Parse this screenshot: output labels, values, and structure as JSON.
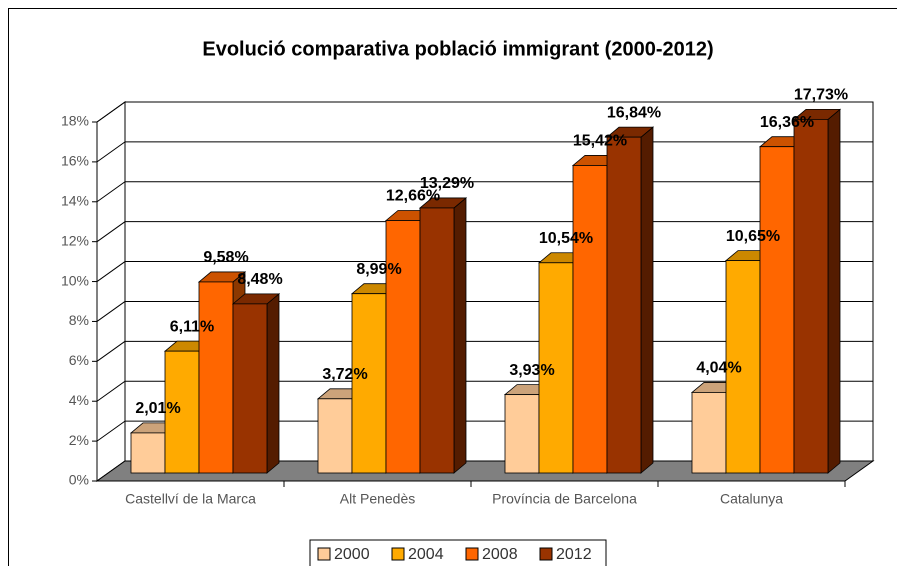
{
  "chart_data": {
    "type": "bar3d",
    "title": "Evolució comparativa població immigrant (2000-2012)",
    "categories": [
      "Castellví de la Marca",
      "Alt Penedès",
      "Província de Barcelona",
      "Catalunya"
    ],
    "series": [
      {
        "name": "2000",
        "color": "#ffcc99",
        "values": [
          2.01,
          3.72,
          3.93,
          4.04
        ],
        "value_labels": [
          "2,01%",
          "3,72%",
          "3,93%",
          "4,04%"
        ]
      },
      {
        "name": "2004",
        "color": "#ffaa00",
        "values": [
          6.11,
          8.99,
          10.54,
          10.65
        ],
        "value_labels": [
          "6,11%",
          "8,99%",
          "10,54%",
          "10,65%"
        ]
      },
      {
        "name": "2008",
        "color": "#ff6600",
        "values": [
          9.58,
          12.66,
          15.42,
          16.36
        ],
        "value_labels": [
          "9,58%",
          "12,66%",
          "15,42%",
          "16,36%"
        ]
      },
      {
        "name": "2012",
        "color": "#993300",
        "values": [
          8.48,
          13.29,
          16.84,
          17.73
        ],
        "value_labels": [
          "8,48%",
          "13,29%",
          "16,84%",
          "17,73%"
        ]
      }
    ],
    "ylim": [
      0,
      18
    ],
    "yticks": [
      {
        "value": 0,
        "label": "0%"
      },
      {
        "value": 2,
        "label": "2%"
      },
      {
        "value": 4,
        "label": "4%"
      },
      {
        "value": 6,
        "label": "6%"
      },
      {
        "value": 8,
        "label": "8%"
      },
      {
        "value": 10,
        "label": "10%"
      },
      {
        "value": 12,
        "label": "12%"
      },
      {
        "value": 14,
        "label": "14%"
      },
      {
        "value": 16,
        "label": "16%"
      },
      {
        "value": 18,
        "label": "18%"
      }
    ],
    "grid": true,
    "legend": "bottom"
  }
}
